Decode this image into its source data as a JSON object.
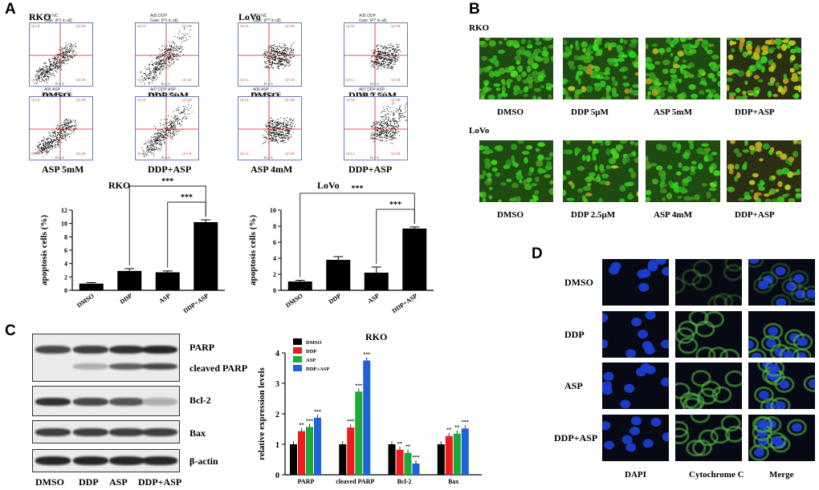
{
  "panels": {
    "a": "A",
    "b": "B",
    "c": "C",
    "d": "D"
  },
  "flow": {
    "rko_title": "RKO",
    "lovo_title": "LoVo",
    "plots": [
      {
        "header": "A04 NC",
        "gate": "Gate: (P1 in all)",
        "label": "DMSO",
        "cells": "rko"
      },
      {
        "header": "A05 DDP",
        "gate": "Gate: (P1 in all)",
        "label": "DDP 5μM",
        "cells": "rko"
      },
      {
        "header": "A04 NC",
        "gate": "Gate: (P7 in all)",
        "label": "DMSO",
        "cells": "lovo"
      },
      {
        "header": "A05 DDP",
        "gate": "Gate: (P7 in all)",
        "label": "DDP 2.5μM",
        "cells": "lovo"
      },
      {
        "header": "A06 ASP",
        "gate": "Gate: (P1 in all)",
        "label": "ASP 5mM",
        "cells": "rko"
      },
      {
        "header": "A07 DDP ASP",
        "gate": "Gate: (P1 in all)",
        "label": "DDP+ASP",
        "cells": "rko"
      },
      {
        "header": "A06 ASP",
        "gate": "Gate: (P7 in all)",
        "label": "ASP 4mM",
        "cells": "lovo"
      },
      {
        "header": "A07 DDP ASP",
        "gate": "Gate: (P7 in all)",
        "label": "DDP+ASP",
        "cells": "lovo"
      }
    ],
    "axis_x": "FL1-A",
    "axis_y": "FL2-A",
    "quadrants": [
      "Q1-UL",
      "Q1-UR",
      "Q1-LL",
      "Q1-LR"
    ]
  },
  "chart_data": [
    {
      "type": "bar",
      "title": "RKO",
      "ylabel": "apoptosis cells (%)",
      "categories": [
        "DMSO",
        "DDP",
        "ASP",
        "DDP+ASP"
      ],
      "values": [
        1.0,
        2.9,
        2.7,
        10.2
      ],
      "errors": [
        0.15,
        0.35,
        0.2,
        0.35
      ],
      "ylim": [
        0,
        12
      ],
      "yticks": [
        "0",
        "2",
        "4",
        "6",
        "8",
        "10",
        "12"
      ],
      "significance": [
        {
          "from": "DDP",
          "to": "DDP+ASP",
          "label": "***"
        },
        {
          "from": "ASP",
          "to": "DDP+ASP",
          "label": "***"
        }
      ]
    },
    {
      "type": "bar",
      "title": "LoVo",
      "ylabel": "apoptosis cells (%)",
      "categories": [
        "DMSO",
        "DDP",
        "ASP",
        "DDP+ASP"
      ],
      "values": [
        1.1,
        3.8,
        2.2,
        7.7
      ],
      "errors": [
        0.15,
        0.4,
        0.7,
        0.2
      ],
      "ylim": [
        0,
        10
      ],
      "yticks": [
        "0",
        "2",
        "4",
        "6",
        "8",
        "10"
      ],
      "significance": [
        {
          "from": "DMSO",
          "to": "DDP+ASP",
          "label": "***"
        },
        {
          "from": "ASP",
          "to": "DDP+ASP",
          "label": "***"
        }
      ]
    },
    {
      "type": "bar",
      "title": "RKO",
      "ylabel": "relative expression levels",
      "categories": [
        "PARP",
        "cleaved PARP",
        "Bcl-2",
        "Bax"
      ],
      "ylim": [
        0,
        4
      ],
      "yticks": [
        "0",
        "1",
        "2",
        "3",
        "4"
      ],
      "series": [
        {
          "name": "DMSO",
          "color": "#000000",
          "values": [
            1.0,
            1.0,
            1.0,
            1.0
          ],
          "stars": [
            "",
            "",
            "",
            ""
          ]
        },
        {
          "name": "DDP",
          "color": "#ee1c1c",
          "values": [
            1.43,
            1.55,
            0.82,
            1.27
          ],
          "stars": [
            "**",
            "***",
            "**",
            "**"
          ]
        },
        {
          "name": "ASP",
          "color": "#1daa3a",
          "values": [
            1.57,
            2.73,
            0.72,
            1.35
          ],
          "stars": [
            "***",
            "***",
            "**",
            "**"
          ]
        },
        {
          "name": "DDP+ASP",
          "color": "#1e64d8",
          "values": [
            1.87,
            3.75,
            0.37,
            1.52
          ],
          "stars": [
            "***",
            "***",
            "***",
            "***"
          ]
        }
      ]
    }
  ],
  "panel_b": {
    "rko_title": "RKO",
    "lovo_title": "LoVo",
    "rko_labels": [
      "DMSO",
      "DDP  5μM",
      "ASP  5mM",
      "DDP+ASP"
    ],
    "lovo_labels": [
      "DMSO",
      "DDP 2.5μM",
      "ASP 4mM",
      "DDP+ASP"
    ]
  },
  "panel_c": {
    "bands": [
      "PARP",
      "cleaved  PARP",
      "Bcl-2",
      "Bax",
      "β-actin"
    ],
    "lanes": [
      "DMSO",
      "DDP",
      "ASP",
      "DDP+ASP"
    ]
  },
  "panel_d": {
    "rows": [
      "DMSO",
      "DDP",
      "ASP",
      "DDP+ASP"
    ],
    "columns": [
      "DAPI",
      "Cytochrome C",
      "Merge"
    ]
  }
}
